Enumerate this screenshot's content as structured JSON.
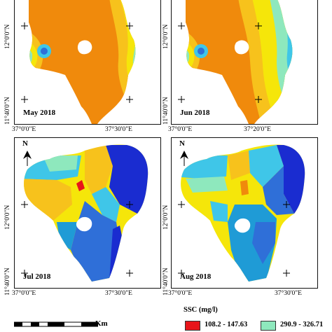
{
  "panels": [
    {
      "label": "May 2018",
      "lon_left": "37°0'0\"E",
      "lon_right": "37°30'0\"E"
    },
    {
      "label": "Jun 2018",
      "lon_left": "37°0'0\"E",
      "lon_right": "37°20'0\"E"
    },
    {
      "label": "Jul 2018",
      "lon_left": "37°0'0\"E",
      "lon_right": "37°30'0\"E"
    },
    {
      "label": "Aug 2018",
      "lon_left": "37°0'0\"E",
      "lon_right": "37°30'0\"E"
    }
  ],
  "lat_labels": {
    "upper": "12°0'0\"N",
    "lower": "11°40'0\"N"
  },
  "north_arrow": "N",
  "legend": {
    "title": "SSC (mg/l)",
    "items": [
      {
        "range": "108.2 - 147.63",
        "color": "#e8151a"
      },
      {
        "range": "290.9 - 326.71",
        "color": "#8ee8bd"
      }
    ]
  },
  "scale_unit": "Km",
  "colors": {
    "red": "#e8151a",
    "orange": "#f08a0c",
    "gold": "#f7c21c",
    "yellow": "#f5e60a",
    "mint": "#8ee8bd",
    "cyan": "#3fc6e8",
    "skyblue": "#1f9bd6",
    "royal": "#2f6fd8",
    "navy": "#1a2cd0"
  }
}
